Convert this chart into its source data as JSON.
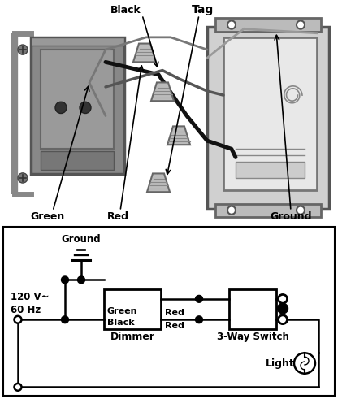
{
  "bg": "#ffffff",
  "top_bg": "#ffffff",
  "dimmer_color": "#888888",
  "dimmer_dark": "#555555",
  "box_color": "#cccccc",
  "box_dark": "#888888",
  "wire_black": "#111111",
  "wire_gray": "#888888",
  "nut_color": "#bbbbbb",
  "label_black": "Black",
  "label_tag": "Tag",
  "label_green": "Green",
  "label_red": "Red",
  "label_ground": "Ground",
  "voltage": "120 V~\n60 Hz",
  "dimmer_label": "Dimmer",
  "switch_label": "3-Way Switch",
  "ground_label": "Ground",
  "light_label": "Light"
}
